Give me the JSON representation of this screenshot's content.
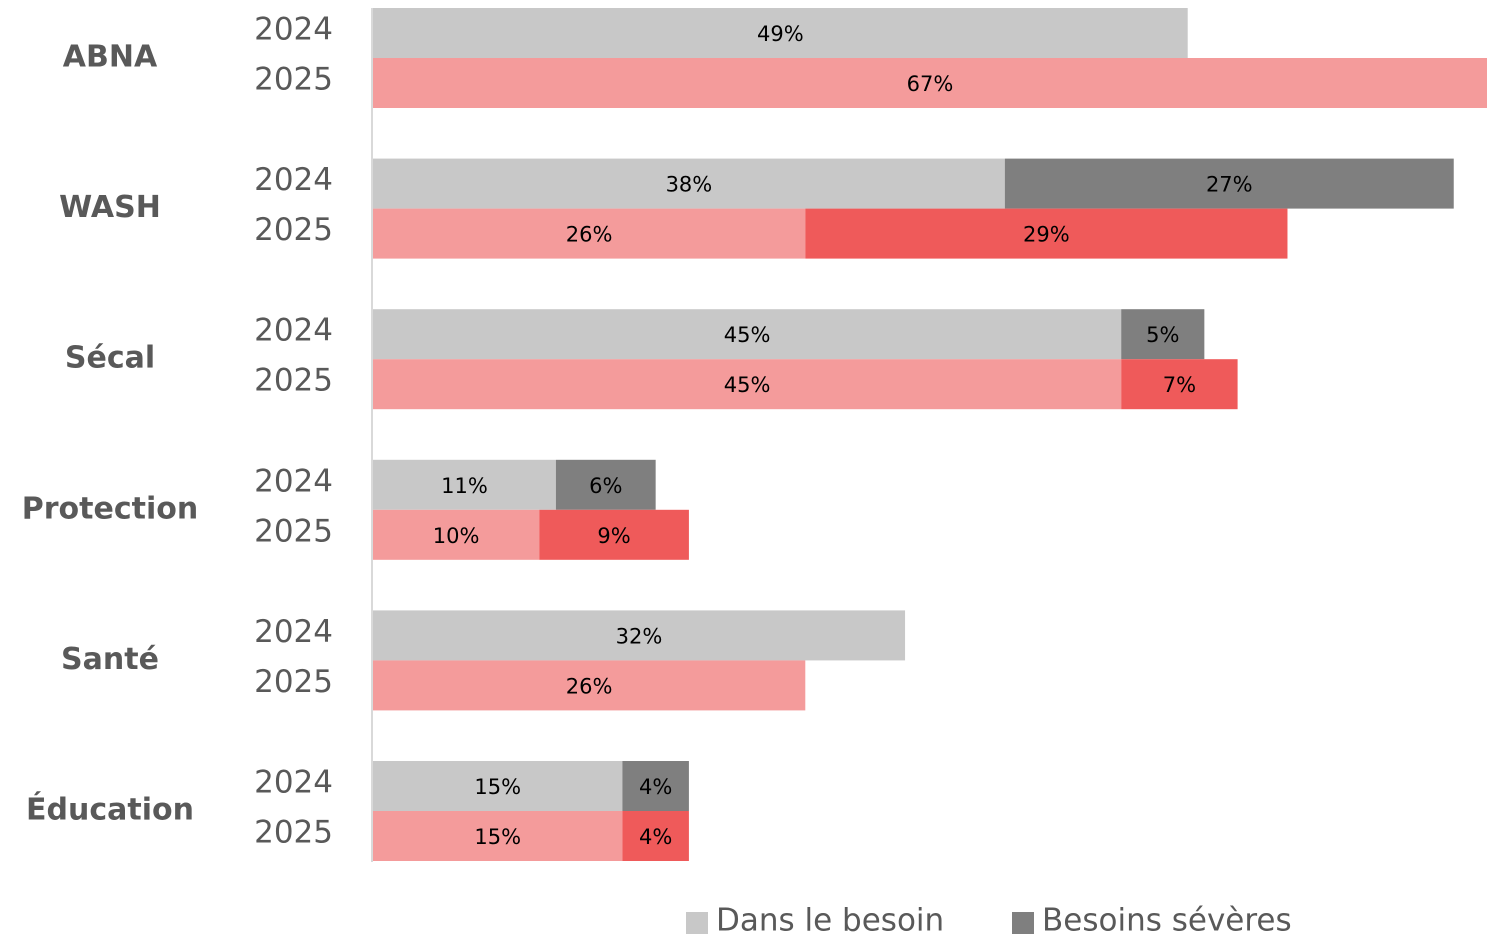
{
  "chart_data": {
    "type": "grouped-stacked-bar-horizontal",
    "categories": [
      "ABNA",
      "WASH",
      "Sécal",
      "Protection",
      "Santé",
      "Éducation"
    ],
    "sub_categories": [
      "2024",
      "2025"
    ],
    "xlim": [
      0,
      67
    ],
    "series": [
      {
        "name": "Dans le besoin",
        "colors": [
          "#c8c8c8",
          "#f49b9b"
        ],
        "values": [
          [
            49,
            67
          ],
          [
            38,
            26
          ],
          [
            45,
            45
          ],
          [
            11,
            10
          ],
          [
            32,
            26
          ],
          [
            15,
            15
          ]
        ],
        "value_labels": [
          [
            "49%",
            "67%"
          ],
          [
            "38%",
            "26%"
          ],
          [
            "45%",
            "45%"
          ],
          [
            "11%",
            "10%"
          ],
          [
            "32%",
            "26%"
          ],
          [
            "15%",
            "15%"
          ]
        ]
      },
      {
        "name": "Besoins sévères",
        "colors": [
          "#7f7f7f",
          "#ef5a5a"
        ],
        "values": [
          [
            null,
            null
          ],
          [
            27,
            29
          ],
          [
            5,
            7
          ],
          [
            6,
            9
          ],
          [
            null,
            null
          ],
          [
            4,
            4
          ]
        ],
        "value_labels": [
          [
            null,
            null
          ],
          [
            "27%",
            "29%"
          ],
          [
            "5%",
            "7%"
          ],
          [
            "6%",
            "9%"
          ],
          [
            null,
            null
          ],
          [
            "4%",
            "4%"
          ]
        ]
      }
    ]
  }
}
